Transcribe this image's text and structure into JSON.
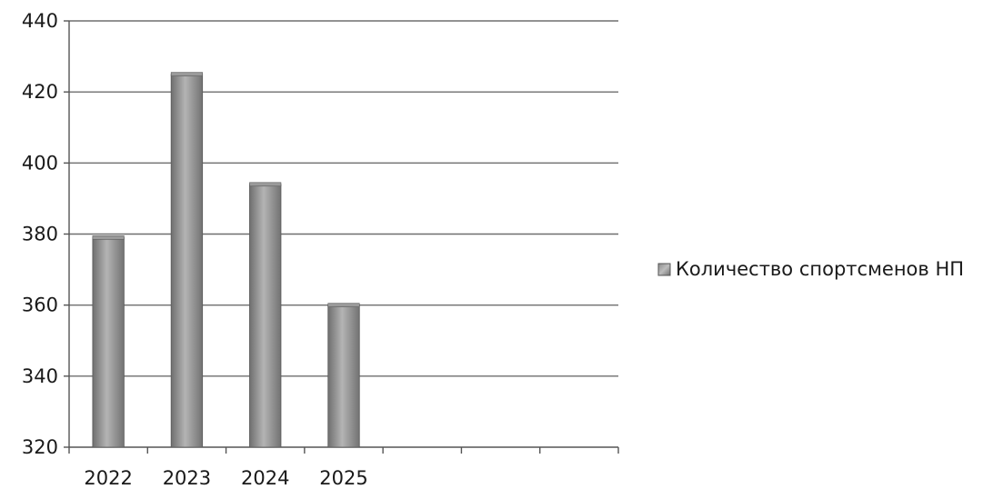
{
  "chart_data": {
    "type": "bar",
    "title": "",
    "xlabel": "",
    "ylabel": "",
    "categories": [
      "2022",
      "2023",
      "2024",
      "2025",
      "",
      "",
      ""
    ],
    "series": [
      {
        "name": "Количество спортсменов  НП",
        "values": [
          379,
          425,
          394,
          360,
          null,
          null,
          null
        ]
      }
    ],
    "ylim": [
      320,
      440
    ],
    "yticks": [
      320,
      340,
      360,
      380,
      400,
      420,
      440
    ],
    "ytick_labels": [
      "320",
      "340",
      "360",
      "380",
      "400",
      "420",
      "440"
    ],
    "grid": true,
    "legend": "right",
    "colors": {
      "bar_dark": "#6f6f6f",
      "bar_light": "#b4b4b4",
      "grid": "#6e6e6e"
    }
  }
}
